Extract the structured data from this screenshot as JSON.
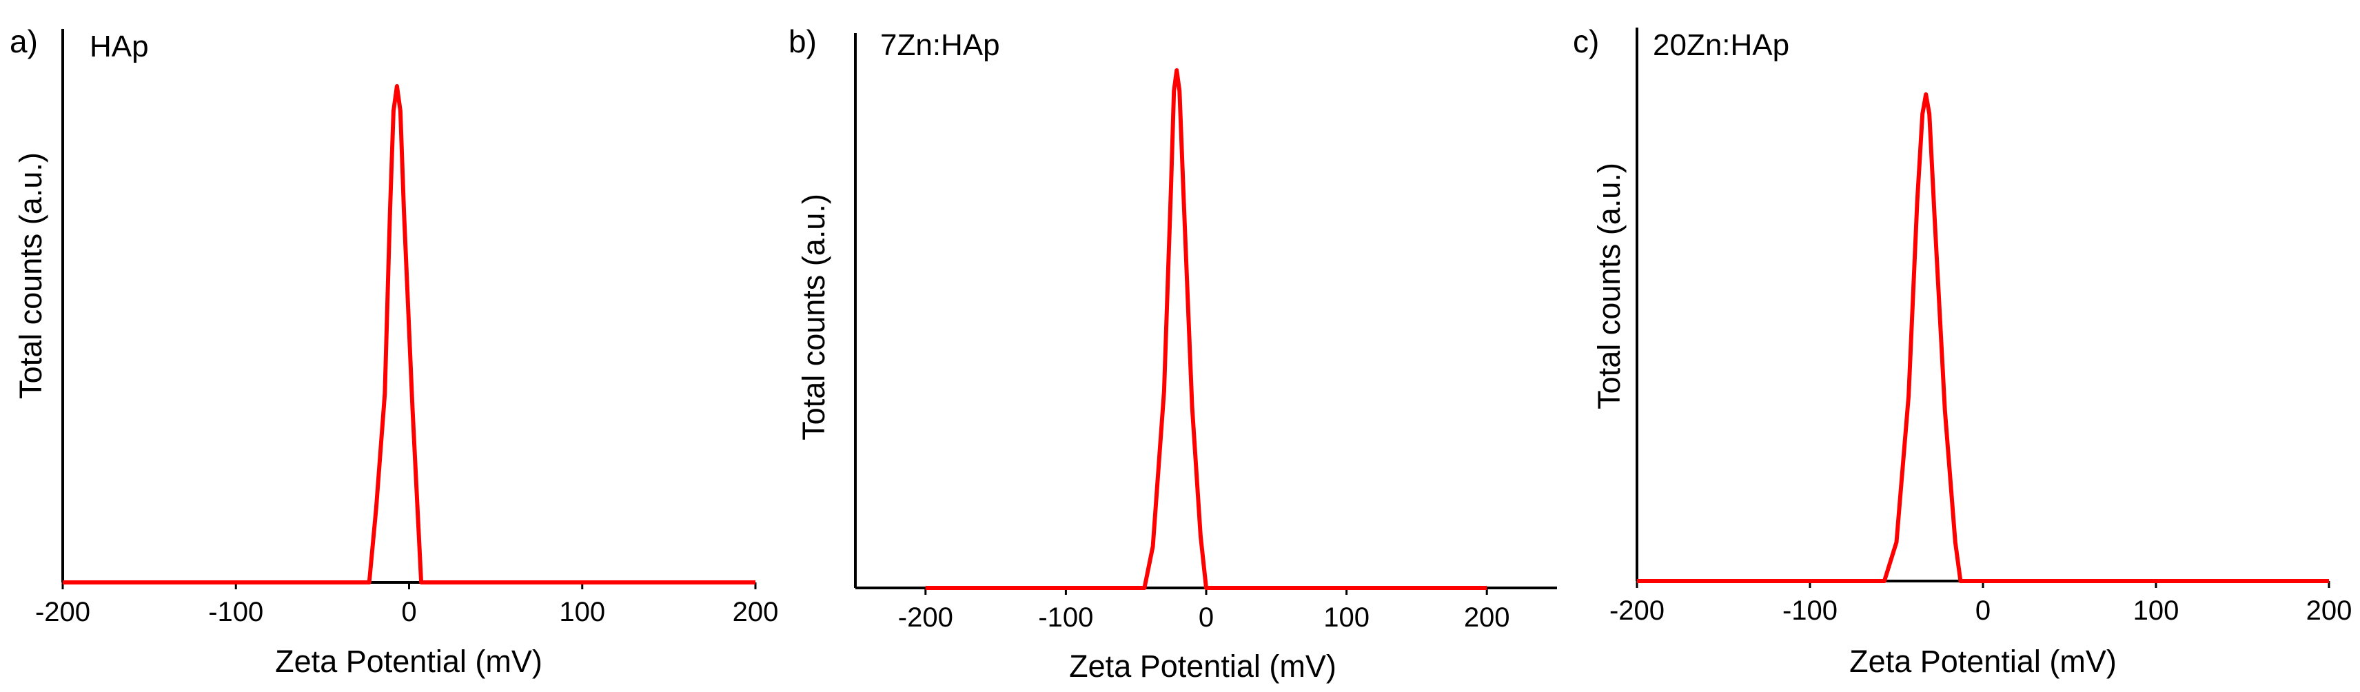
{
  "colors": {
    "series": "#ff0000",
    "axis": "#000000"
  },
  "chart_data": [
    {
      "type": "line",
      "panel_label": "a)",
      "sample_label": "HAp",
      "xlabel": "Zeta Potential (mV)",
      "ylabel": "Total counts (a.u.)",
      "xlim": [
        -200,
        200
      ],
      "ylim": [
        0,
        100
      ],
      "x_ticks": [
        -200,
        -100,
        0,
        100,
        200
      ],
      "tick_labels": [
        "-200",
        "-100",
        "0",
        "100",
        "200"
      ],
      "series": [
        {
          "name": "HAp",
          "x": [
            -200,
            -23,
            -19,
            -14,
            -11,
            -9,
            -7,
            -5,
            -3,
            2,
            7,
            200
          ],
          "y": [
            0,
            0,
            15,
            38,
            75,
            95,
            100,
            95,
            75,
            35,
            0,
            0
          ]
        }
      ]
    },
    {
      "type": "line",
      "panel_label": "b)",
      "sample_label": "7Zn:HAp",
      "xlabel": "Zeta Potential (mV)",
      "ylabel": "Total counts (a.u.)",
      "xlim": [
        -250,
        250
      ],
      "ylim": [
        0,
        100
      ],
      "x_ticks": [
        -200,
        -100,
        0,
        100,
        200
      ],
      "tick_labels": [
        "-200",
        "-100",
        "0",
        "100",
        "200"
      ],
      "series": [
        {
          "name": "7Zn:HAp",
          "x": [
            -200,
            -44,
            -38,
            -30,
            -25,
            -23,
            -21,
            -19,
            -16,
            -10,
            -4,
            0,
            200
          ],
          "y": [
            0,
            0,
            8,
            38,
            78,
            96,
            100,
            96,
            75,
            35,
            10,
            0,
            0
          ]
        }
      ]
    },
    {
      "type": "line",
      "panel_label": "c)",
      "sample_label": "20Zn:HAp",
      "xlabel": "Zeta Potential (mV)",
      "ylabel": "Total counts (a.u.)",
      "xlim": [
        -200,
        200
      ],
      "ylim": [
        0,
        100
      ],
      "x_ticks": [
        -200,
        -100,
        0,
        100,
        200
      ],
      "tick_labels": [
        "-200",
        "-100",
        "0",
        "100",
        "200"
      ],
      "series": [
        {
          "name": "20Zn:HAp",
          "x": [
            -200,
            -57,
            -50,
            -43,
            -38,
            -35,
            -33,
            -31,
            -28,
            -22,
            -16,
            -13,
            200
          ],
          "y": [
            0,
            0,
            8,
            38,
            78,
            96,
            100,
            96,
            75,
            35,
            8,
            0,
            0
          ]
        }
      ]
    }
  ]
}
